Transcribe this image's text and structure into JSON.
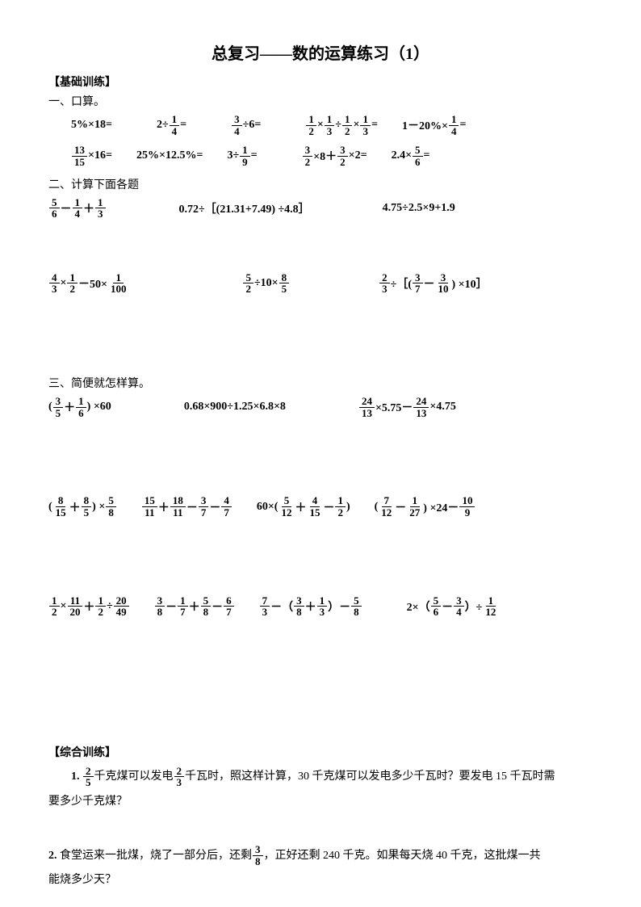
{
  "title": "总复习——数的运算练习（1）",
  "headers": {
    "basic": "【基础训练】",
    "s1": "一、口算。",
    "s2": "二、计算下面各题",
    "s3": "三、简便就怎样算。",
    "comp": "【综合训练】"
  },
  "s1_row1": {
    "q1": "5%×18=",
    "q2_a": "2÷",
    "q2_eq": "=",
    "q3_b": "÷6=",
    "q4_a": "×",
    "q4_b": "÷",
    "q4_c": "×",
    "q4_eq": "=",
    "q5_a": "1－20%×",
    "q5_eq": "="
  },
  "s1_row2": {
    "q1_b": "×16=",
    "q2": "25%×12.5%=",
    "q3_a": "3÷",
    "q3_eq": "=",
    "q4_a": "×8＋",
    "q4_b": "×2=",
    "q5_a": "2.4×",
    "q5_eq": "="
  },
  "s2_row1": {
    "q1_a": "－",
    "q1_b": "＋",
    "q2": "0.72÷［(21.31+7.49) ÷4.8］",
    "q3": "4.75÷2.5×9+1.9"
  },
  "s2_row2": {
    "q1_a": "×",
    "q1_b": "－50×",
    "q2_a": "÷10×",
    "q3_a": "÷［(",
    "q3_b": "－",
    "q3_c": ") ×10］"
  },
  "s3_row1": {
    "q1_a": "(",
    "q1_b": "＋",
    "q1_c": ") ×60",
    "q2": "0.68×900÷1.25×6.8×8",
    "q3_a": "×5.75－",
    "q3_b": "×4.75"
  },
  "s3_row2": {
    "q1_a": "(",
    "q1_b": "＋",
    "q1_c": ") ×",
    "q2_a": "＋",
    "q2_b": "－",
    "q2_c": "－",
    "q3_a": "60×(",
    "q3_b": "＋",
    "q3_c": "－",
    "q3_d": ")",
    "q4_a": "(",
    "q4_b": "－",
    "q4_c": ") ×24－"
  },
  "s3_row3": {
    "q1_a": "×",
    "q1_b": "＋",
    "q1_c": "÷",
    "q2_a": "－",
    "q2_b": "＋",
    "q2_c": "－",
    "q3_a": "－（",
    "q3_b": "＋",
    "q3_c": "）－",
    "q4_a": "2×（",
    "q4_b": "－",
    "q4_c": "）÷"
  },
  "comp_q1": {
    "num": "1.",
    "t1": "千克煤可以发电",
    "t2": "千瓦时，照这样计算，30 千克煤可以发电多少千瓦时？要发电 15 千瓦时需",
    "t3": "要多少千克煤？"
  },
  "comp_q2": {
    "num": "2.",
    "t1": "食堂运来一批煤，烧了一部分后，还剩",
    "t2": "，正好还剩 240 千克。如果每天烧 40 千克，这批煤一共",
    "t3": "能烧多少天？"
  },
  "fracs": {
    "f1_4": {
      "n": "1",
      "d": "4"
    },
    "f3_4": {
      "n": "3",
      "d": "4"
    },
    "f1_2": {
      "n": "1",
      "d": "2"
    },
    "f1_3": {
      "n": "1",
      "d": "3"
    },
    "f13_15": {
      "n": "13",
      "d": "15"
    },
    "f1_9": {
      "n": "1",
      "d": "9"
    },
    "f3_2": {
      "n": "3",
      "d": "2"
    },
    "f5_6": {
      "n": "5",
      "d": "6"
    },
    "f1_6": {
      "n": "1",
      "d": "6"
    },
    "f4_3": {
      "n": "4",
      "d": "3"
    },
    "f1_100": {
      "n": "1",
      "d": "100"
    },
    "f5_2": {
      "n": "5",
      "d": "2"
    },
    "f8_5": {
      "n": "8",
      "d": "5"
    },
    "f2_3": {
      "n": "2",
      "d": "3"
    },
    "f3_7": {
      "n": "3",
      "d": "7"
    },
    "f3_10": {
      "n": "3",
      "d": "10"
    },
    "f3_5": {
      "n": "3",
      "d": "5"
    },
    "f24_13": {
      "n": "24",
      "d": "13"
    },
    "f8_15": {
      "n": "8",
      "d": "15"
    },
    "f5_8": {
      "n": "5",
      "d": "8"
    },
    "f15_11": {
      "n": "15",
      "d": "11"
    },
    "f18_11": {
      "n": "18",
      "d": "11"
    },
    "f4_7": {
      "n": "4",
      "d": "7"
    },
    "f5_12": {
      "n": "5",
      "d": "12"
    },
    "f4_15": {
      "n": "4",
      "d": "15"
    },
    "f7_12": {
      "n": "7",
      "d": "12"
    },
    "f1_27": {
      "n": "1",
      "d": "27"
    },
    "f10_9": {
      "n": "10",
      "d": "9"
    },
    "f11_20": {
      "n": "11",
      "d": "20"
    },
    "f20_49": {
      "n": "20",
      "d": "49"
    },
    "f3_8": {
      "n": "3",
      "d": "8"
    },
    "f1_7": {
      "n": "1",
      "d": "7"
    },
    "f6_7": {
      "n": "6",
      "d": "7"
    },
    "f7_3": {
      "n": "7",
      "d": "3"
    },
    "f1_12": {
      "n": "1",
      "d": "12"
    },
    "f2_5": {
      "n": "2",
      "d": "5"
    }
  }
}
